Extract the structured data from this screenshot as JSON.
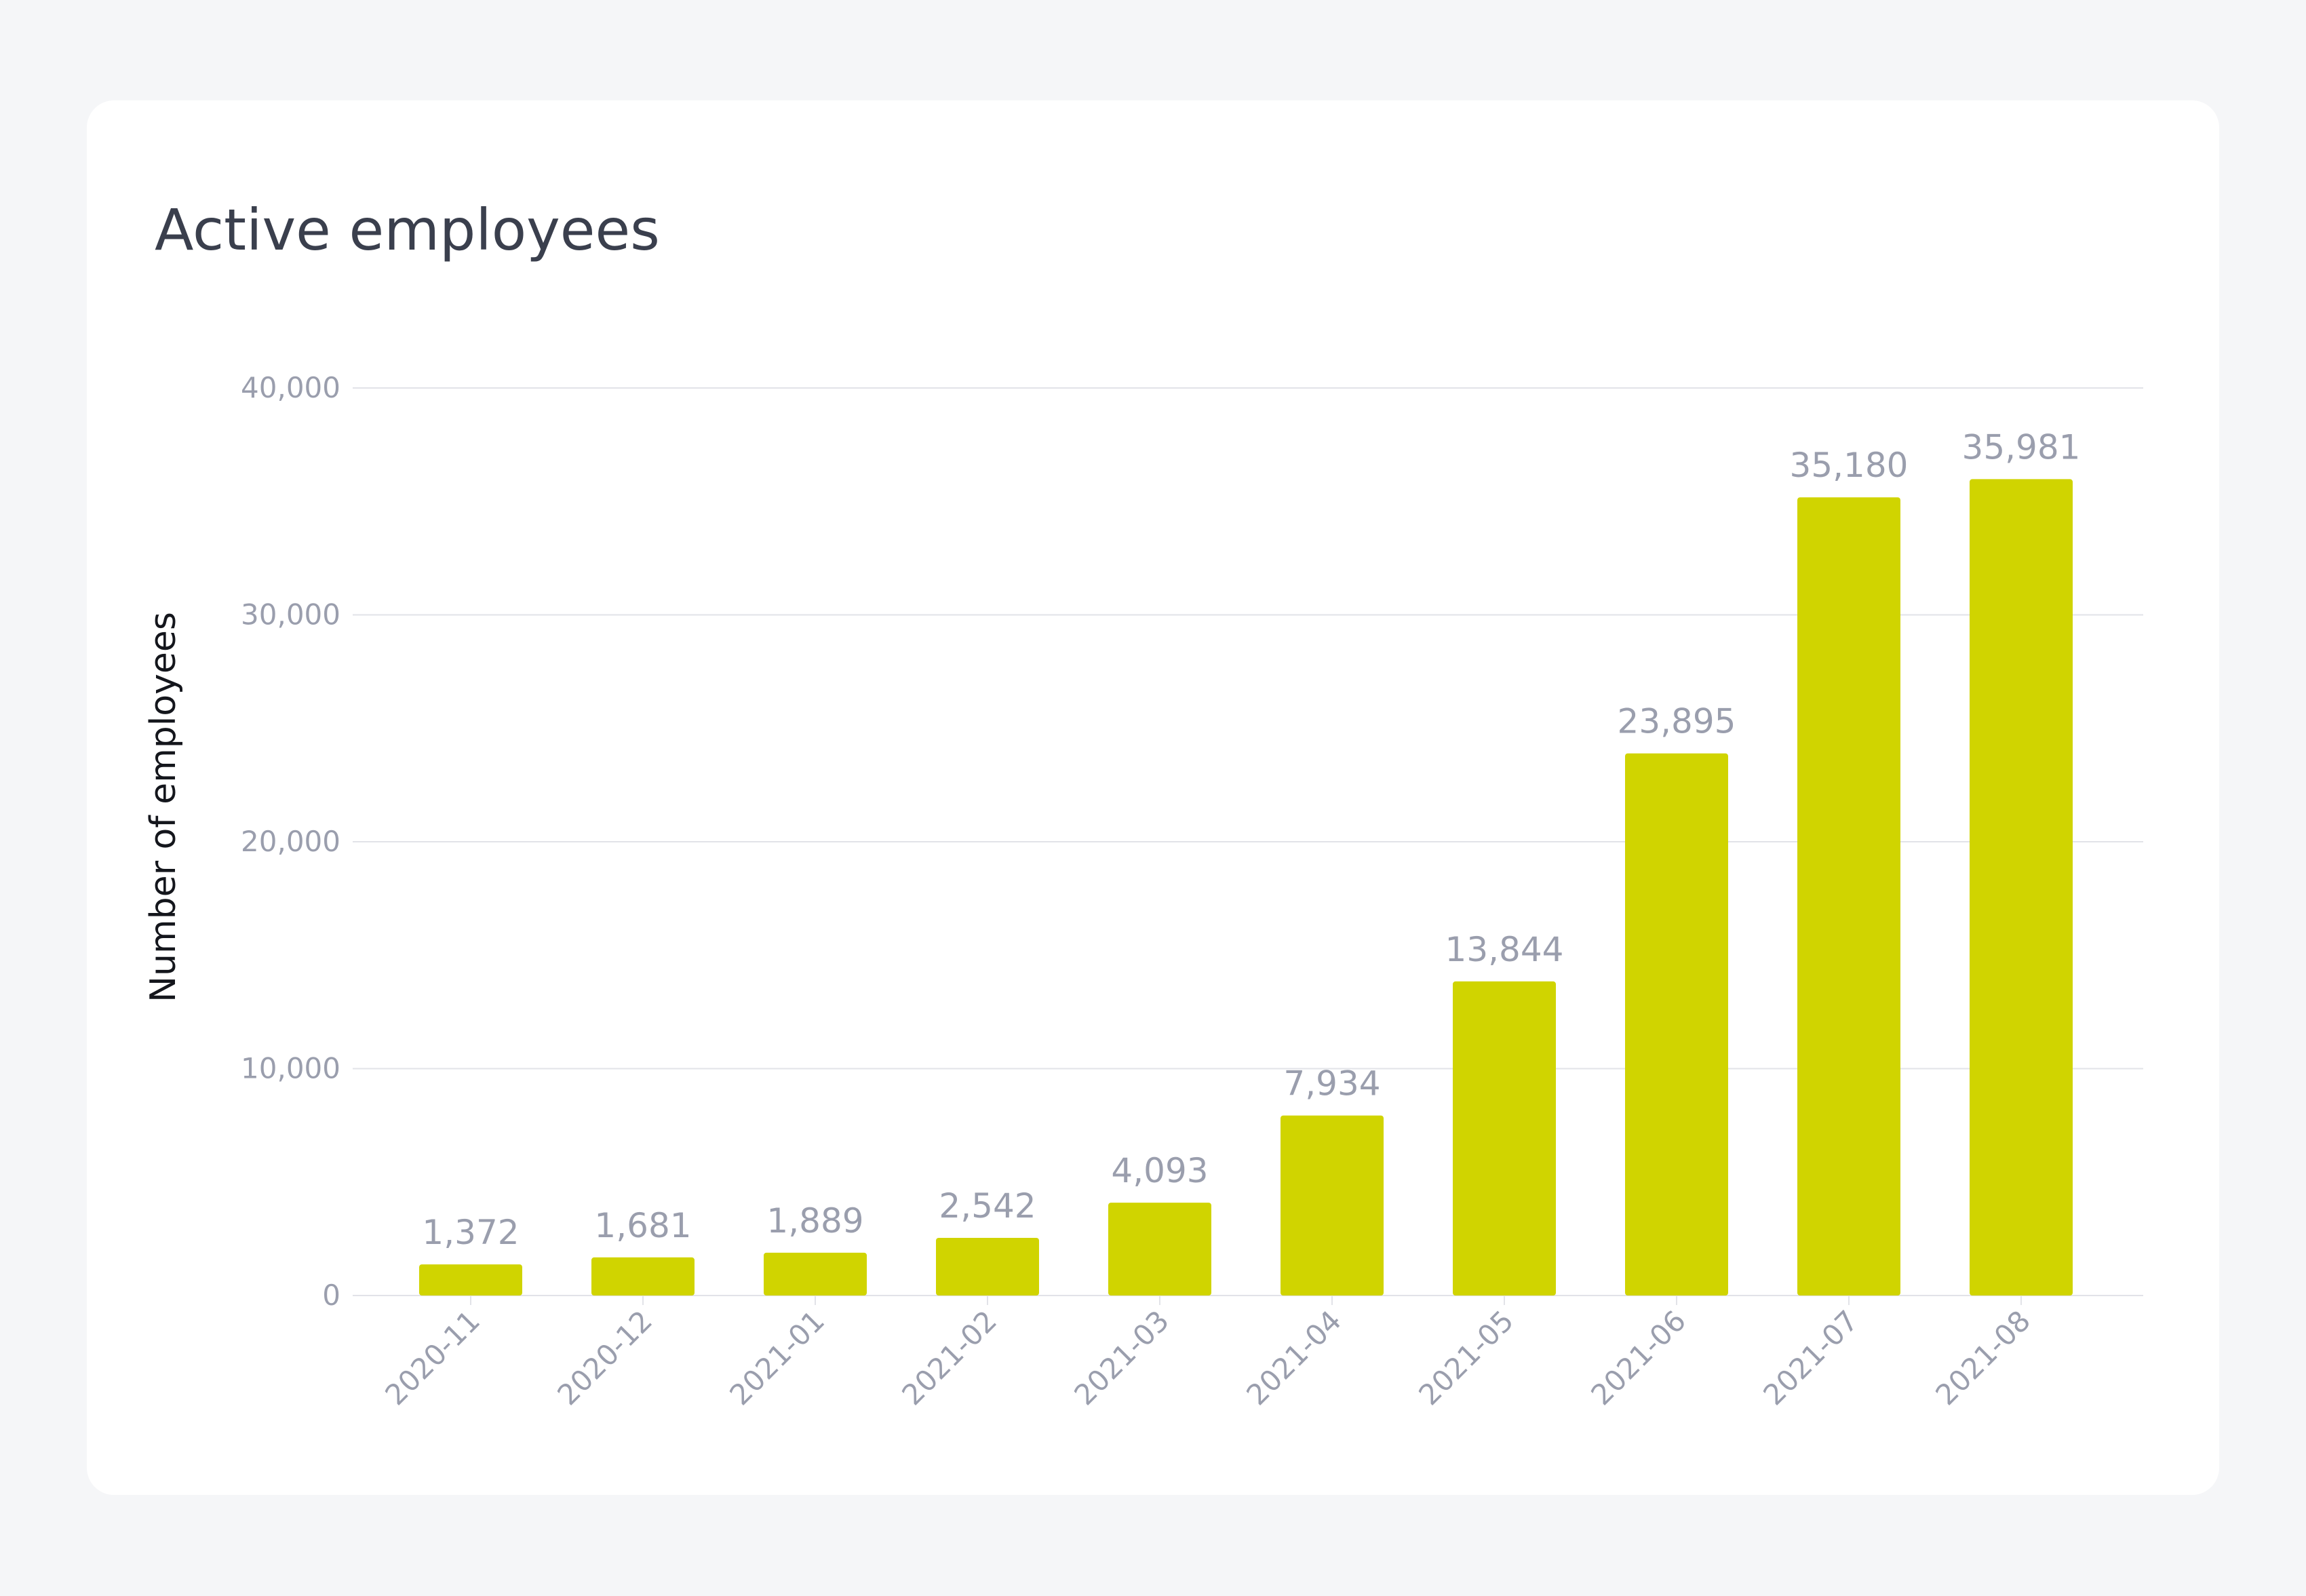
{
  "chart_data": {
    "type": "bar",
    "title": "Active employees",
    "ylabel": "Number of employees",
    "xlabel": "",
    "categories": [
      "2020-11",
      "2020-12",
      "2021-01",
      "2021-02",
      "2021-03",
      "2021-04",
      "2021-05",
      "2021-06",
      "2021-07",
      "2021-08"
    ],
    "values": [
      1372,
      1681,
      1889,
      2542,
      4093,
      7934,
      13844,
      23895,
      35180,
      35981
    ],
    "value_labels": [
      "1,372",
      "1,681",
      "1,889",
      "2,542",
      "4,093",
      "7,934",
      "13,844",
      "23,895",
      "35,180",
      "35,981"
    ],
    "ylim": [
      0,
      40000
    ],
    "yticks": [
      0,
      10000,
      20000,
      30000,
      40000
    ],
    "ytick_labels": [
      "0",
      "10,000",
      "20,000",
      "30,000",
      "40,000"
    ],
    "grid": true,
    "legend": "none",
    "colors": {
      "bar": "#d0d400",
      "gridline": "#e2e3e8",
      "tick_text": "#9a9ead",
      "title_text": "#3a3f4d",
      "axis_title_text": "#14161c"
    }
  }
}
